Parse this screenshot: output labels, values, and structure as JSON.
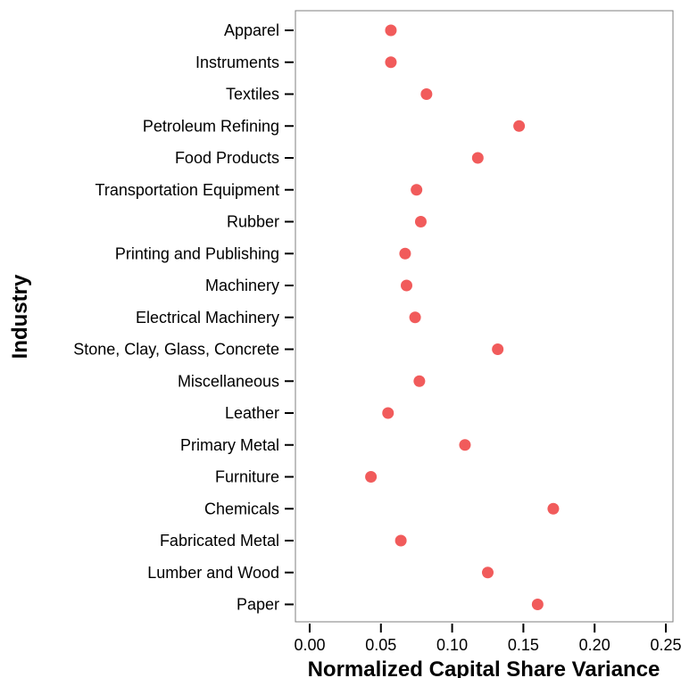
{
  "chart_data": {
    "type": "scatter",
    "orientation": "horizontal-dot",
    "title": "",
    "xlabel": "Normalized Capital Share Variance",
    "ylabel": "Industry",
    "xlim": [
      -0.01,
      0.255
    ],
    "xticks": [
      0.0,
      0.05,
      0.1,
      0.15,
      0.2,
      0.25
    ],
    "xtick_labels": [
      "0.00",
      "0.05",
      "0.10",
      "0.15",
      "0.20",
      "0.25"
    ],
    "grid": false,
    "legend": "none",
    "point_color": "#f15b5b",
    "categories": [
      "Apparel",
      "Instruments",
      "Textiles",
      "Petroleum Refining",
      "Food Products",
      "Transportation Equipment",
      "Rubber",
      "Printing and Publishing",
      "Machinery",
      "Electrical Machinery",
      "Stone, Clay, Glass, Concrete",
      "Miscellaneous",
      "Leather",
      "Primary Metal",
      "Furniture",
      "Chemicals",
      "Fabricated Metal",
      "Lumber and Wood",
      "Paper"
    ],
    "values": [
      0.057,
      0.057,
      0.082,
      0.147,
      0.118,
      0.075,
      0.078,
      0.067,
      0.068,
      0.074,
      0.132,
      0.077,
      0.055,
      0.109,
      0.043,
      0.171,
      0.064,
      0.125,
      0.16
    ]
  }
}
